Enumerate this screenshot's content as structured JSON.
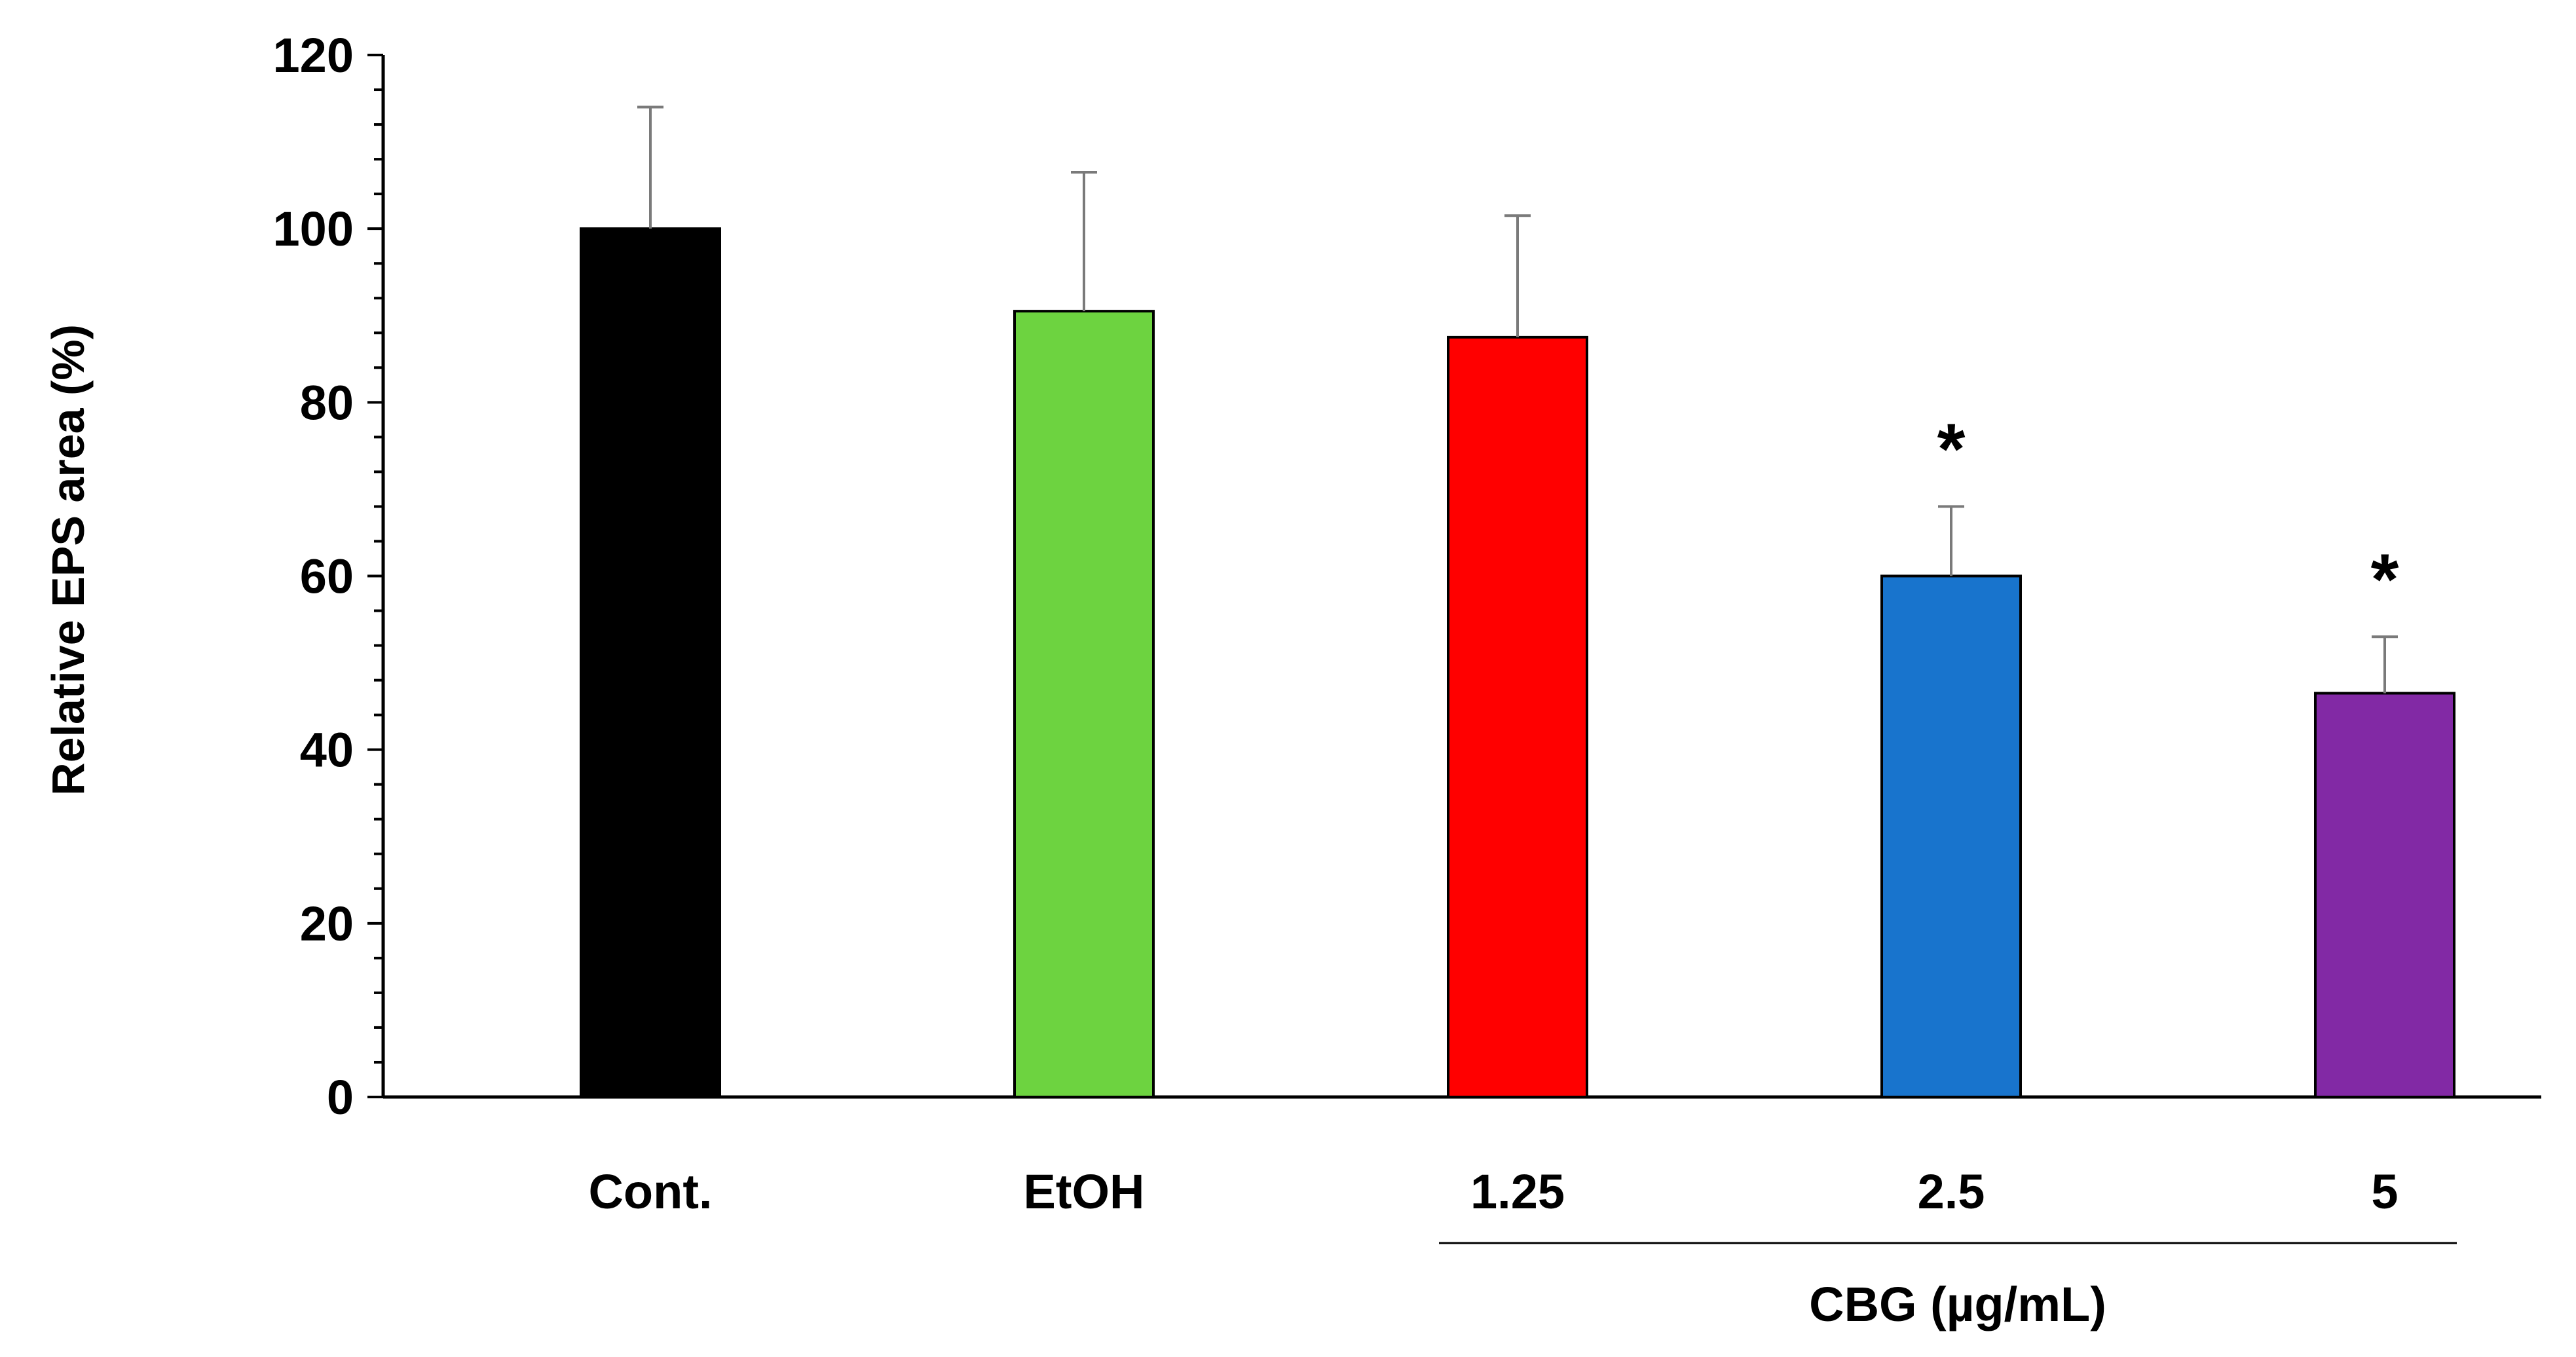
{
  "chart_data": {
    "type": "bar",
    "title": "",
    "xlabel": "",
    "ylabel": "Relative EPS area  (%)",
    "ylim": [
      0,
      120
    ],
    "yticks": [
      0,
      20,
      40,
      60,
      80,
      100,
      120
    ],
    "yticks_text": [
      "0",
      "20",
      "40",
      "60",
      "80",
      "100",
      "120"
    ],
    "minor_ticks_per_major": 5,
    "grid": false,
    "categories": [
      "Cont.",
      "EtOH",
      "1.25",
      "2.5",
      "5"
    ],
    "values": [
      100,
      90.5,
      87.5,
      60,
      46.5
    ],
    "error": [
      14,
      16,
      14,
      8,
      6.5
    ],
    "colors": [
      "#000000",
      "#6dd340",
      "#ff0000",
      "#1874cd",
      "#8229a5"
    ],
    "significance": [
      "",
      "",
      "",
      "*",
      "*"
    ],
    "group": {
      "label": "CBG (µg/mL)",
      "category_indices": [
        2,
        3,
        4
      ]
    }
  }
}
